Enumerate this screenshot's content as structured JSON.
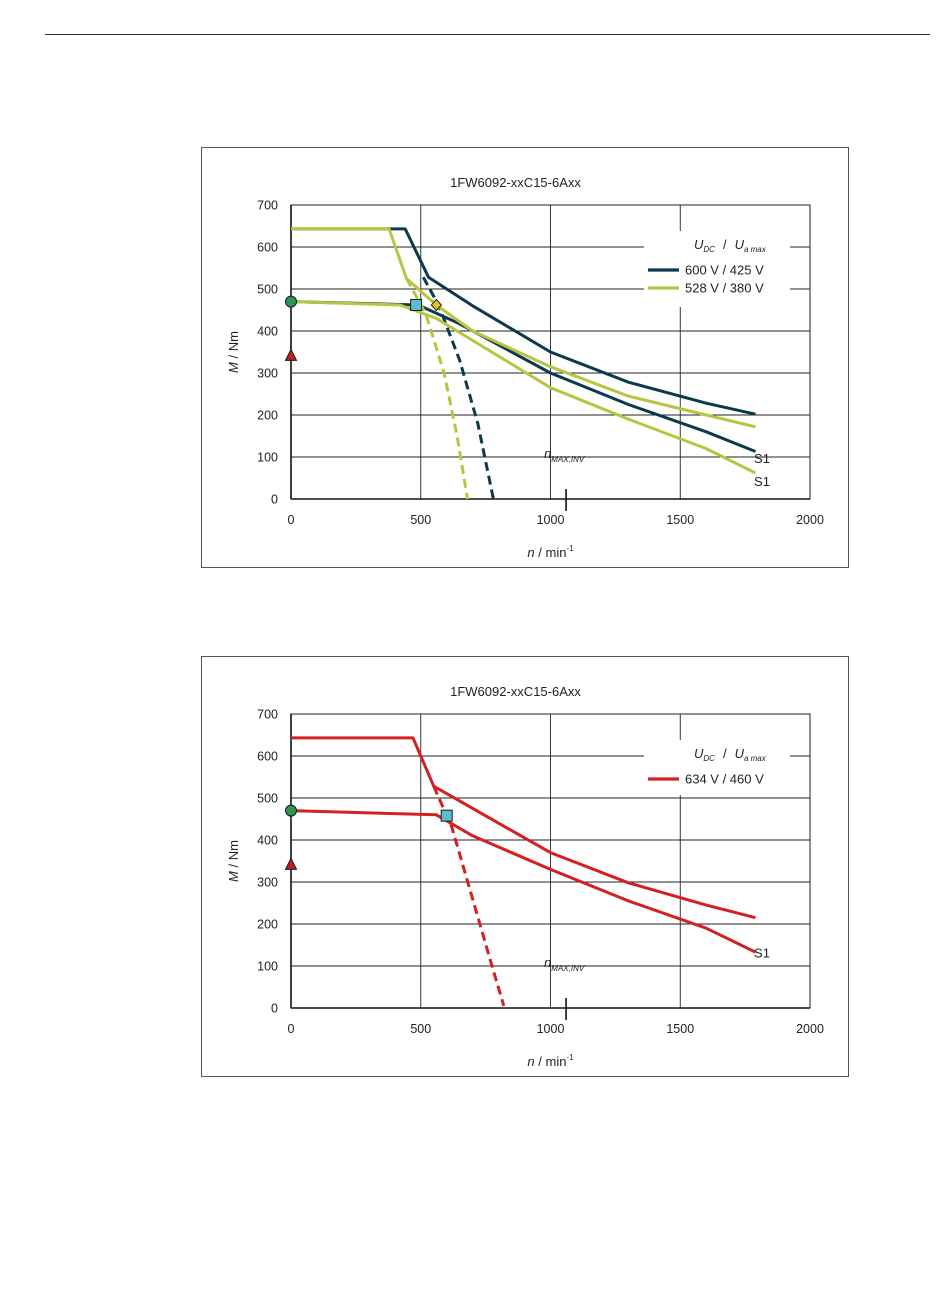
{
  "chart_data": [
    {
      "type": "line",
      "title": "1FW6092-xxC15-6Axx",
      "xlabel": {
        "italic": "n",
        "rest": " / min",
        "sup": "-1"
      },
      "ylabel": {
        "italic": "M",
        "rest": " / Nm"
      },
      "xlim": [
        0,
        2000
      ],
      "ylim": [
        0,
        700
      ],
      "xticks": [
        0,
        500,
        1000,
        1500,
        2000
      ],
      "yticks": [
        0,
        100,
        200,
        300,
        400,
        500,
        600,
        700
      ],
      "grid": true,
      "legend": {
        "placement": "top-right",
        "header": {
          "u1": "U",
          "sub1": "DC",
          "sep": "/",
          "u2": "U",
          "sub2": "a max"
        },
        "entries": [
          {
            "label": "600 V / 425 V",
            "color": "#0d3a4a"
          },
          {
            "label": "528 V / 380 V",
            "color": "#b7c640"
          }
        ]
      },
      "series": [
        {
          "color": "#0d3a4a",
          "dash": false,
          "points": [
            [
              0,
              643
            ],
            [
              440,
              643
            ],
            [
              530,
              528
            ],
            [
              700,
              460
            ],
            [
              1000,
              350
            ],
            [
              1300,
              278
            ],
            [
              1600,
              228
            ],
            [
              1790,
              202
            ]
          ]
        },
        {
          "color": "#0d3a4a",
          "dash": false,
          "points": [
            [
              0,
              470
            ],
            [
              490,
              462
            ],
            [
              640,
              420
            ],
            [
              1000,
              300
            ],
            [
              1300,
              225
            ],
            [
              1600,
              160
            ],
            [
              1790,
              113
            ]
          ]
        },
        {
          "color": "#0d3a4a",
          "dash": true,
          "points": [
            [
              510,
              528
            ],
            [
              570,
              460
            ],
            [
              650,
              330
            ],
            [
              720,
              180
            ],
            [
              780,
              0
            ]
          ]
        },
        {
          "color": "#b7c640",
          "dash": false,
          "points": [
            [
              0,
              643
            ],
            [
              378,
              643
            ],
            [
              445,
              525
            ],
            [
              560,
              462
            ],
            [
              700,
              400
            ],
            [
              1000,
              315
            ],
            [
              1300,
              245
            ],
            [
              1600,
              200
            ],
            [
              1790,
              172
            ]
          ]
        },
        {
          "color": "#b7c640",
          "dash": false,
          "points": [
            [
              0,
              470
            ],
            [
              420,
              462
            ],
            [
              560,
              430
            ],
            [
              1000,
              265
            ],
            [
              1300,
              190
            ],
            [
              1600,
              120
            ],
            [
              1790,
              62
            ]
          ]
        },
        {
          "color": "#b7c640",
          "dash": true,
          "points": [
            [
              445,
              525
            ],
            [
              520,
              440
            ],
            [
              590,
              300
            ],
            [
              640,
              150
            ],
            [
              680,
              0
            ]
          ]
        }
      ],
      "markers": [
        {
          "shape": "circle",
          "x": 0,
          "y": 470,
          "color": "#2e9650"
        },
        {
          "shape": "triangle",
          "x": 0,
          "y": 342,
          "color": "#c02020"
        },
        {
          "shape": "square",
          "x": 482,
          "y": 462,
          "color": "#5bbcd0"
        },
        {
          "shape": "diamond",
          "x": 560,
          "y": 462,
          "color": "#e6c31a"
        }
      ],
      "annotations": [
        {
          "kind": "s1",
          "text": "S1",
          "x": 1815,
          "y": 95
        },
        {
          "kind": "s1",
          "text": "S1",
          "x": 1815,
          "y": 40
        },
        {
          "kind": "nmax",
          "text": "n",
          "sub": "MAX,INV",
          "x": 1060,
          "y": 45,
          "tick_x": 1060
        }
      ]
    },
    {
      "type": "line",
      "title": "1FW6092-xxC15-6Axx",
      "xlabel": {
        "italic": "n",
        "rest": " / min",
        "sup": "-1"
      },
      "ylabel": {
        "italic": "M",
        "rest": " / Nm"
      },
      "xlim": [
        0,
        2000
      ],
      "ylim": [
        0,
        700
      ],
      "xticks": [
        0,
        500,
        1000,
        1500,
        2000
      ],
      "yticks": [
        0,
        100,
        200,
        300,
        400,
        500,
        600,
        700
      ],
      "grid": true,
      "legend": {
        "placement": "top-right",
        "header": {
          "u1": "U",
          "sub1": "DC",
          "sep": "/",
          "u2": "U",
          "sub2": "a max"
        },
        "entries": [
          {
            "label": "634 V / 460 V",
            "color": "#d42020"
          }
        ]
      },
      "series": [
        {
          "color": "#d42020",
          "dash": false,
          "points": [
            [
              0,
              643
            ],
            [
              470,
              643
            ],
            [
              550,
              528
            ],
            [
              800,
              440
            ],
            [
              1000,
              370
            ],
            [
              1300,
              298
            ],
            [
              1600,
              245
            ],
            [
              1790,
              215
            ]
          ]
        },
        {
          "color": "#d42020",
          "dash": false,
          "points": [
            [
              0,
              470
            ],
            [
              560,
              460
            ],
            [
              700,
              410
            ],
            [
              1000,
              330
            ],
            [
              1300,
              255
            ],
            [
              1600,
              190
            ],
            [
              1790,
              133
            ]
          ]
        },
        {
          "color": "#d42020",
          "dash": true,
          "points": [
            [
              550,
              528
            ],
            [
              620,
              430
            ],
            [
              700,
              260
            ],
            [
              770,
              110
            ],
            [
              820,
              5
            ]
          ]
        }
      ],
      "markers": [
        {
          "shape": "circle",
          "x": 0,
          "y": 470,
          "color": "#2e9650"
        },
        {
          "shape": "triangle",
          "x": 0,
          "y": 342,
          "color": "#c02020"
        },
        {
          "shape": "square",
          "x": 600,
          "y": 458,
          "color": "#5bbcd0"
        }
      ],
      "annotations": [
        {
          "kind": "s1",
          "text": "S1",
          "x": 1815,
          "y": 130
        },
        {
          "kind": "nmax",
          "text": "n",
          "sub": "MAX,INV",
          "x": 1060,
          "y": 45,
          "tick_x": 1060
        }
      ]
    }
  ]
}
